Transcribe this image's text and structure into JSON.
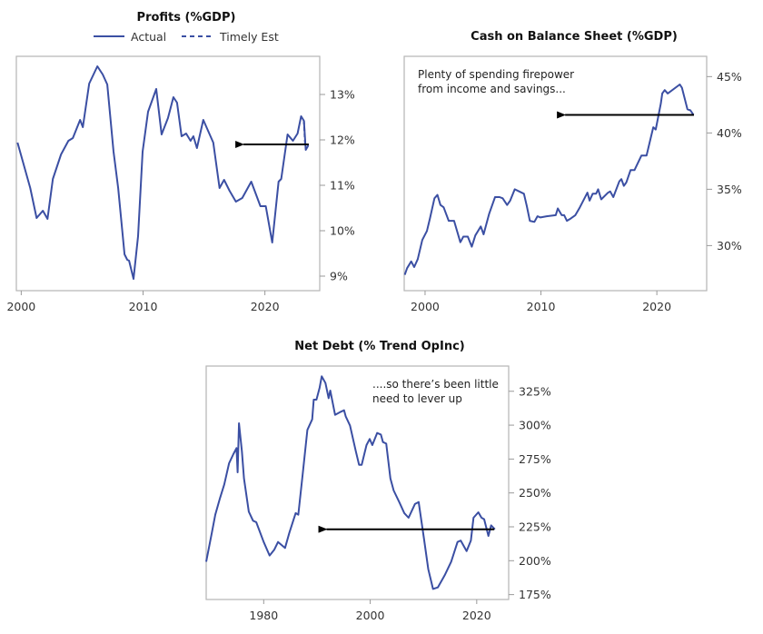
{
  "chart_data": [
    {
      "type": "line",
      "title": "Profits (%GDP)",
      "legend": {
        "placement": "top-center",
        "entries": [
          "Actual",
          "Timely Est"
        ]
      },
      "xlim": [
        1999.6,
        2024.5
      ],
      "ylim": [
        8.68,
        13.84
      ],
      "xticks": [
        2000,
        2010,
        2020
      ],
      "xtick_labels": [
        "2000",
        "2010",
        "2020"
      ],
      "yticks": [
        9,
        10,
        11,
        12,
        13
      ],
      "ytick_labels": [
        "9%",
        "10%",
        "11%",
        "12%",
        "13%"
      ],
      "series": [
        {
          "name": "Actual",
          "style": "solid",
          "color": "#3b4fa3",
          "points": [
            [
              1999.7,
              11.94
            ],
            [
              2000.74,
              10.94
            ],
            [
              2001.26,
              10.28
            ],
            [
              2001.78,
              10.44
            ],
            [
              2002.16,
              10.26
            ],
            [
              2002.6,
              11.14
            ],
            [
              2003.27,
              11.68
            ],
            [
              2003.87,
              11.98
            ],
            [
              2004.24,
              12.04
            ],
            [
              2004.83,
              12.44
            ],
            [
              2005.06,
              12.28
            ],
            [
              2005.58,
              13.24
            ],
            [
              2006.25,
              13.62
            ],
            [
              2006.69,
              13.44
            ],
            [
              2007.06,
              13.22
            ],
            [
              2007.58,
              11.74
            ],
            [
              2007.96,
              10.94
            ],
            [
              2008.48,
              9.48
            ],
            [
              2008.7,
              9.36
            ],
            [
              2008.85,
              9.34
            ],
            [
              2009.22,
              8.94
            ],
            [
              2009.59,
              9.88
            ],
            [
              2009.96,
              11.74
            ],
            [
              2010.41,
              12.62
            ],
            [
              2011.08,
              13.12
            ],
            [
              2011.52,
              12.12
            ],
            [
              2012.04,
              12.48
            ],
            [
              2012.49,
              12.94
            ],
            [
              2012.79,
              12.82
            ],
            [
              2013.16,
              12.08
            ],
            [
              2013.53,
              12.14
            ],
            [
              2013.9,
              11.98
            ],
            [
              2014.13,
              12.08
            ],
            [
              2014.42,
              11.82
            ],
            [
              2014.94,
              12.44
            ],
            [
              2015.76,
              11.94
            ],
            [
              2016.28,
              10.94
            ],
            [
              2016.65,
              11.12
            ],
            [
              2017.1,
              10.88
            ],
            [
              2017.62,
              10.64
            ],
            [
              2018.14,
              10.72
            ],
            [
              2018.88,
              11.08
            ],
            [
              2019.63,
              10.54
            ],
            [
              2020.07,
              10.54
            ],
            [
              2020.6,
              9.74
            ],
            [
              2021.12,
              11.08
            ],
            [
              2021.34,
              11.14
            ],
            [
              2021.86,
              12.12
            ],
            [
              2022.3,
              11.98
            ],
            [
              2022.68,
              12.14
            ],
            [
              2022.97,
              12.52
            ],
            [
              2023.2,
              12.42
            ],
            [
              2023.35,
              11.78
            ],
            [
              2023.57,
              11.88
            ]
          ]
        },
        {
          "name": "Timely Est",
          "style": "dashed",
          "color": "#3b4fa3",
          "points": [
            [
              2023.2,
              12.42
            ],
            [
              2023.3,
              11.9
            ]
          ]
        }
      ],
      "arrow": {
        "y": 11.9,
        "from_x": 2023.6,
        "to_x": 2017.5
      },
      "annotation": []
    },
    {
      "type": "line",
      "title": "Cash on Balance Sheet (%GDP)",
      "xlim": [
        1998.2,
        2024.3
      ],
      "ylim": [
        26.0,
        46.8
      ],
      "xticks": [
        2000,
        2010,
        2020
      ],
      "xtick_labels": [
        "2000",
        "2010",
        "2020"
      ],
      "yticks": [
        30,
        35,
        40,
        45
      ],
      "ytick_labels": [
        "30%",
        "35%",
        "40%",
        "45%"
      ],
      "series": [
        {
          "name": "Cash",
          "style": "solid",
          "color": "#3b4fa3",
          "points": [
            [
              1998.25,
              27.4
            ],
            [
              1998.45,
              28.0
            ],
            [
              1998.8,
              28.6
            ],
            [
              1999.06,
              28.1
            ],
            [
              1999.37,
              28.8
            ],
            [
              1999.76,
              30.5
            ],
            [
              2000.16,
              31.3
            ],
            [
              2000.42,
              32.4
            ],
            [
              2000.81,
              34.2
            ],
            [
              2001.07,
              34.5
            ],
            [
              2001.33,
              33.6
            ],
            [
              2001.6,
              33.4
            ],
            [
              2002.04,
              32.2
            ],
            [
              2002.5,
              32.2
            ],
            [
              2003.04,
              30.3
            ],
            [
              2003.3,
              30.8
            ],
            [
              2003.69,
              30.8
            ],
            [
              2004.03,
              29.9
            ],
            [
              2004.34,
              30.9
            ],
            [
              2004.81,
              31.7
            ],
            [
              2005.05,
              31.0
            ],
            [
              2005.52,
              32.8
            ],
            [
              2006.04,
              34.3
            ],
            [
              2006.43,
              34.3
            ],
            [
              2006.7,
              34.2
            ],
            [
              2007.08,
              33.6
            ],
            [
              2007.35,
              34.0
            ],
            [
              2007.74,
              35.0
            ],
            [
              2008.13,
              34.8
            ],
            [
              2008.53,
              34.6
            ],
            [
              2008.78,
              33.5
            ],
            [
              2009.04,
              32.2
            ],
            [
              2009.43,
              32.1
            ],
            [
              2009.7,
              32.6
            ],
            [
              2009.96,
              32.5
            ],
            [
              2010.49,
              32.6
            ],
            [
              2011.27,
              32.7
            ],
            [
              2011.45,
              33.3
            ],
            [
              2011.79,
              32.7
            ],
            [
              2012.0,
              32.7
            ],
            [
              2012.24,
              32.2
            ],
            [
              2012.57,
              32.4
            ],
            [
              2012.97,
              32.7
            ],
            [
              2013.36,
              33.4
            ],
            [
              2014.01,
              34.7
            ],
            [
              2014.2,
              34.0
            ],
            [
              2014.46,
              34.6
            ],
            [
              2014.75,
              34.6
            ],
            [
              2014.93,
              35.0
            ],
            [
              2015.2,
              34.1
            ],
            [
              2015.79,
              34.7
            ],
            [
              2015.98,
              34.8
            ],
            [
              2016.24,
              34.3
            ],
            [
              2016.76,
              35.7
            ],
            [
              2016.94,
              35.9
            ],
            [
              2017.15,
              35.3
            ],
            [
              2017.36,
              35.6
            ],
            [
              2017.73,
              36.7
            ],
            [
              2018.07,
              36.7
            ],
            [
              2018.67,
              38.0
            ],
            [
              2019.11,
              38.0
            ],
            [
              2019.69,
              40.5
            ],
            [
              2019.9,
              40.3
            ],
            [
              2020.34,
              42.6
            ],
            [
              2020.47,
              43.5
            ],
            [
              2020.68,
              43.8
            ],
            [
              2020.94,
              43.5
            ],
            [
              2021.98,
              44.3
            ],
            [
              2022.17,
              44.0
            ],
            [
              2022.64,
              42.1
            ],
            [
              2022.9,
              42.0
            ],
            [
              2023.16,
              41.6
            ]
          ]
        }
      ],
      "arrow": {
        "y": 41.6,
        "from_x": 2023.2,
        "to_x": 2011.3
      },
      "annotation": [
        "Plenty of spending firepower",
        "from income and savings..."
      ]
    },
    {
      "type": "line",
      "title": "Net Debt (% Trend OpInc)",
      "xlim": [
        1969.2,
        2026.0
      ],
      "ylim": [
        171.4,
        343.6
      ],
      "xticks": [
        1980,
        2000,
        2020
      ],
      "xtick_labels": [
        "1980",
        "2000",
        "2020"
      ],
      "yticks": [
        175,
        200,
        225,
        250,
        275,
        300,
        325
      ],
      "ytick_labels": [
        "175%",
        "200%",
        "225%",
        "250%",
        "275%",
        "300%",
        "325%"
      ],
      "series": [
        {
          "name": "Net Debt",
          "style": "solid",
          "color": "#3b4fa3",
          "points": [
            [
              1969.2,
              199.3
            ],
            [
              1970.25,
              220.5
            ],
            [
              1970.9,
              233.9
            ],
            [
              1971.8,
              246.2
            ],
            [
              1972.6,
              256.3
            ],
            [
              1973.5,
              271.9
            ],
            [
              1974.3,
              278.6
            ],
            [
              1974.9,
              283.1
            ],
            [
              1975.1,
              265.2
            ],
            [
              1975.35,
              301.4
            ],
            [
              1975.9,
              280.8
            ],
            [
              1976.3,
              260.7
            ],
            [
              1977.2,
              236.2
            ],
            [
              1978.0,
              229.5
            ],
            [
              1978.6,
              228.4
            ],
            [
              1980.0,
              213.8
            ],
            [
              1981.1,
              203.8
            ],
            [
              1982.0,
              208.2
            ],
            [
              1982.7,
              213.8
            ],
            [
              1984.0,
              209.4
            ],
            [
              1984.8,
              220.5
            ],
            [
              1986.0,
              235.1
            ],
            [
              1986.5,
              233.9
            ],
            [
              1987.3,
              263.0
            ],
            [
              1988.2,
              296.5
            ],
            [
              1989.1,
              304.3
            ],
            [
              1989.4,
              318.8
            ],
            [
              1989.9,
              318.8
            ],
            [
              1990.5,
              327.7
            ],
            [
              1990.9,
              336.0
            ],
            [
              1991.6,
              331.1
            ],
            [
              1992.2,
              319.9
            ],
            [
              1992.5,
              325.5
            ],
            [
              1993.4,
              307.6
            ],
            [
              1994.5,
              309.9
            ],
            [
              1995.1,
              311.0
            ],
            [
              1995.4,
              306.5
            ],
            [
              1996.2,
              299.8
            ],
            [
              1997.3,
              280.8
            ],
            [
              1997.9,
              270.8
            ],
            [
              1998.4,
              270.8
            ],
            [
              1999.3,
              285.3
            ],
            [
              1999.9,
              289.8
            ],
            [
              2000.4,
              285.3
            ],
            [
              2001.3,
              294.2
            ],
            [
              2002.0,
              293.1
            ],
            [
              2002.4,
              287.5
            ],
            [
              2003.0,
              286.4
            ],
            [
              2003.8,
              260.7
            ],
            [
              2004.4,
              251.8
            ],
            [
              2005.5,
              242.9
            ],
            [
              2006.4,
              235.1
            ],
            [
              2007.2,
              231.7
            ],
            [
              2008.4,
              241.8
            ],
            [
              2009.1,
              243.3
            ],
            [
              2010.1,
              216.1
            ],
            [
              2010.9,
              193.7
            ],
            [
              2011.8,
              179.2
            ],
            [
              2012.7,
              180.3
            ],
            [
              2014.0,
              189.3
            ],
            [
              2015.2,
              199.3
            ],
            [
              2016.4,
              213.8
            ],
            [
              2017.0,
              214.9
            ],
            [
              2018.1,
              207.1
            ],
            [
              2018.9,
              214.9
            ],
            [
              2019.4,
              231.7
            ],
            [
              2020.3,
              235.7
            ],
            [
              2020.9,
              231.7
            ],
            [
              2021.4,
              230.6
            ],
            [
              2022.2,
              218.3
            ],
            [
              2022.7,
              226.1
            ],
            [
              2023.4,
              223.2
            ]
          ]
        }
      ],
      "arrow": {
        "y": 223.2,
        "from_x": 2023.3,
        "to_x": 1990.1
      },
      "annotation": [
        "....so there’s been little",
        "need to lever up"
      ]
    }
  ]
}
